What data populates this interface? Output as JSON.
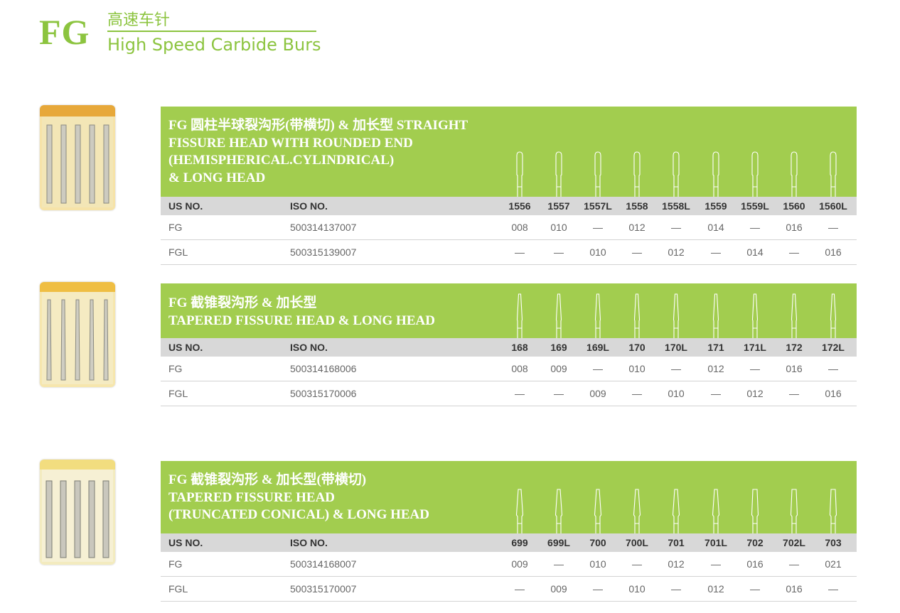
{
  "header": {
    "brand": "FG",
    "title_cn": "高速车针",
    "title_en": "High Speed Carbide Burs"
  },
  "colors": {
    "accent": "#a2cd4f",
    "brand": "#8cc43f",
    "header_row": "#d8d8d8"
  },
  "columns": {
    "us_no": "US NO.",
    "iso_no": "ISO NO."
  },
  "sections": [
    {
      "title_lines": [
        "FG  圆柱半球裂沟形(带横切) & 加长型 STRAIGHT",
        "FISSURE HEAD WITH ROUNDED END",
        " (HEMISPHERICAL.CYLINDRICAL)",
        " & LONG HEAD"
      ],
      "sizes": [
        "1556",
        "1557",
        "1557L",
        "1558",
        "1558L",
        "1559",
        "1559L",
        "1560",
        "1560L"
      ],
      "rows": [
        {
          "us": "FG",
          "iso": "500314137007",
          "values": [
            "008",
            "010",
            "—",
            "012",
            "—",
            "014",
            "—",
            "016",
            "—"
          ]
        },
        {
          "us": "FGL",
          "iso": "500315139007",
          "values": [
            "—",
            "—",
            "010",
            "—",
            "012",
            "—",
            "014",
            "—",
            "016"
          ]
        }
      ]
    },
    {
      "title_lines": [
        "FG  截锥裂沟形 & 加长型",
        "TAPERED FISSURE HEAD & LONG HEAD"
      ],
      "sizes": [
        "168",
        "169",
        "169L",
        "170",
        "170L",
        "171",
        "171L",
        "172",
        "172L"
      ],
      "rows": [
        {
          "us": "FG",
          "iso": "500314168006",
          "values": [
            "008",
            "009",
            "—",
            "010",
            "—",
            "012",
            "—",
            "016",
            "—"
          ]
        },
        {
          "us": "FGL",
          "iso": "500315170006",
          "values": [
            "—",
            "—",
            "009",
            "—",
            "010",
            "—",
            "012",
            "—",
            "016"
          ]
        }
      ]
    },
    {
      "title_lines": [
        "FG  截锥裂沟形 & 加长型(带横切)",
        "TAPERED FISSURE HEAD",
        "(TRUNCATED CONICAL) & LONG HEAD"
      ],
      "sizes": [
        "699",
        "699L",
        "700",
        "700L",
        "701",
        "701L",
        "702",
        "702L",
        "703"
      ],
      "rows": [
        {
          "us": "FG",
          "iso": "500314168007",
          "values": [
            "009",
            "—",
            "010",
            "—",
            "012",
            "—",
            "016",
            "—",
            "021"
          ]
        },
        {
          "us": "FGL",
          "iso": "500315170007",
          "values": [
            "—",
            "009",
            "—",
            "010",
            "—",
            "012",
            "—",
            "016",
            "—"
          ]
        }
      ]
    }
  ]
}
